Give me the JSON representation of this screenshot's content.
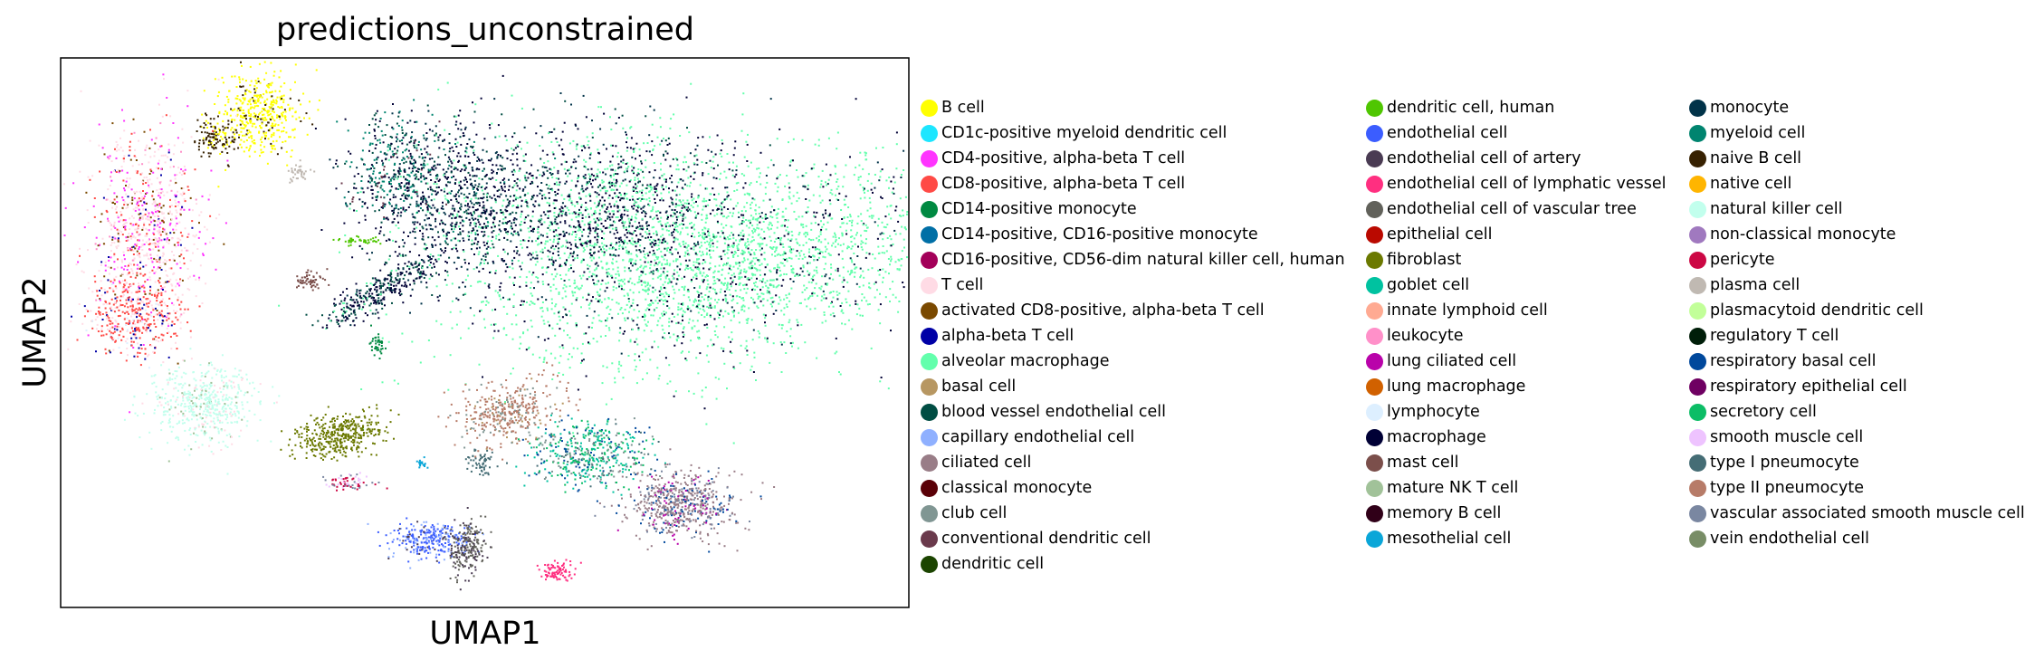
{
  "chart_data": {
    "type": "scatter",
    "title": "predictions_unconstrained",
    "xlabel": "UMAP1",
    "ylabel": "UMAP2",
    "xticks": [],
    "yticks": [],
    "grid": false,
    "legend_placement": "right",
    "legend": [
      {
        "label": "B cell",
        "color": "#ffff00"
      },
      {
        "label": "CD1c-positive myeloid dendritic cell",
        "color": "#1ce6ff"
      },
      {
        "label": "CD4-positive, alpha-beta T cell",
        "color": "#ff34ff"
      },
      {
        "label": "CD8-positive, alpha-beta T cell",
        "color": "#ff4a46"
      },
      {
        "label": "CD14-positive monocyte",
        "color": "#008941"
      },
      {
        "label": "CD14-positive, CD16-positive monocyte",
        "color": "#006fa6"
      },
      {
        "label": "CD16-positive, CD56-dim natural killer cell, human",
        "color": "#a30059"
      },
      {
        "label": "T cell",
        "color": "#ffdbe5"
      },
      {
        "label": "activated CD8-positive, alpha-beta T cell",
        "color": "#7a4900"
      },
      {
        "label": "alpha-beta T cell",
        "color": "#0000a6"
      },
      {
        "label": "alveolar macrophage",
        "color": "#63ffac"
      },
      {
        "label": "basal cell",
        "color": "#b79762"
      },
      {
        "label": "blood vessel endothelial cell",
        "color": "#004d43"
      },
      {
        "label": "capillary endothelial cell",
        "color": "#8fb0ff"
      },
      {
        "label": "ciliated cell",
        "color": "#997d87"
      },
      {
        "label": "classical monocyte",
        "color": "#5a0007"
      },
      {
        "label": "club cell",
        "color": "#809693"
      },
      {
        "label": "conventional dendritic cell",
        "color": "#6a3a4c"
      },
      {
        "label": "dendritic cell",
        "color": "#1b4400"
      },
      {
        "label": "dendritic cell, human",
        "color": "#4fc601"
      },
      {
        "label": "endothelial cell",
        "color": "#3b5dff"
      },
      {
        "label": "endothelial cell of artery",
        "color": "#4a3b53"
      },
      {
        "label": "endothelial cell of lymphatic vessel",
        "color": "#ff2f80"
      },
      {
        "label": "endothelial cell of vascular tree",
        "color": "#61615a"
      },
      {
        "label": "epithelial cell",
        "color": "#ba0900"
      },
      {
        "label": "fibroblast",
        "color": "#6b7900"
      },
      {
        "label": "goblet cell",
        "color": "#00c2a0"
      },
      {
        "label": "innate lymphoid cell",
        "color": "#ffaa92"
      },
      {
        "label": "leukocyte",
        "color": "#ff90c9"
      },
      {
        "label": "lung ciliated cell",
        "color": "#b903aa"
      },
      {
        "label": "lung macrophage",
        "color": "#d16100"
      },
      {
        "label": "lymphocyte",
        "color": "#ddefff"
      },
      {
        "label": "macrophage",
        "color": "#000035"
      },
      {
        "label": "mast cell",
        "color": "#7b4f4b"
      },
      {
        "label": "mature NK T cell",
        "color": "#a1c299"
      },
      {
        "label": "memory B cell",
        "color": "#300018"
      },
      {
        "label": "mesothelial cell",
        "color": "#0aa6d8"
      },
      {
        "label": "monocyte",
        "color": "#013349"
      },
      {
        "label": "myeloid cell",
        "color": "#00846f"
      },
      {
        "label": "naive B cell",
        "color": "#372101"
      },
      {
        "label": "native cell",
        "color": "#ffb500"
      },
      {
        "label": "natural killer cell",
        "color": "#c2ffed"
      },
      {
        "label": "non-classical monocyte",
        "color": "#a079bf"
      },
      {
        "label": "pericyte",
        "color": "#cc0744"
      },
      {
        "label": "plasma cell",
        "color": "#c0b9b2"
      },
      {
        "label": "plasmacytoid dendritic cell",
        "color": "#c2ff99"
      },
      {
        "label": "regulatory T cell",
        "color": "#001e09"
      },
      {
        "label": "respiratory basal cell",
        "color": "#00489c"
      },
      {
        "label": "respiratory epithelial cell",
        "color": "#6f0062"
      },
      {
        "label": "secretory cell",
        "color": "#0cbd66"
      },
      {
        "label": "smooth muscle cell",
        "color": "#eec3ff"
      },
      {
        "label": "type I pneumocyte",
        "color": "#456d75"
      },
      {
        "label": "type II pneumocyte",
        "color": "#b77b68"
      },
      {
        "label": "vascular associated smooth muscle cell",
        "color": "#7a87a1"
      },
      {
        "label": "vein endothelial cell",
        "color": "#788d66"
      }
    ]
  }
}
